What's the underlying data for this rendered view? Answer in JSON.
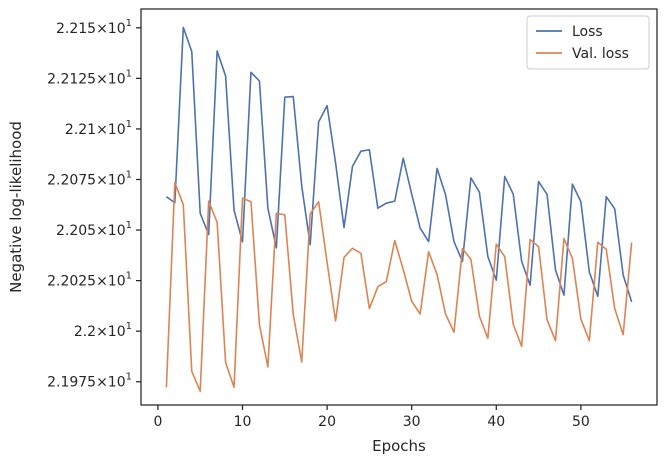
{
  "chart_data": {
    "type": "line",
    "title": "",
    "xlabel": "Epochs",
    "ylabel": "Negative log-likelihood",
    "xlim": [
      -2,
      59
    ],
    "ylim": [
      21.9635,
      22.1593
    ],
    "grid": false,
    "legend_position": "top-right",
    "x_ticks": [
      {
        "value": 0,
        "label": "0"
      },
      {
        "value": 10,
        "label": "10"
      },
      {
        "value": 20,
        "label": "20"
      },
      {
        "value": 30,
        "label": "30"
      },
      {
        "value": 40,
        "label": "40"
      },
      {
        "value": 50,
        "label": "50"
      }
    ],
    "y_ticks": [
      {
        "value": 21.975,
        "base": "2.1975",
        "exp": "1"
      },
      {
        "value": 22.0,
        "base": "2.2",
        "exp": "1"
      },
      {
        "value": 22.025,
        "base": "2.2025",
        "exp": "1"
      },
      {
        "value": 22.05,
        "base": "2.205",
        "exp": "1"
      },
      {
        "value": 22.075,
        "base": "2.2075",
        "exp": "1"
      },
      {
        "value": 22.1,
        "base": "2.21",
        "exp": "1"
      },
      {
        "value": 22.125,
        "base": "2.2125",
        "exp": "1"
      },
      {
        "value": 22.15,
        "base": "2.215",
        "exp": "1"
      }
    ],
    "x": [
      1,
      2,
      3,
      4,
      5,
      6,
      7,
      8,
      9,
      10,
      11,
      12,
      13,
      14,
      15,
      16,
      17,
      18,
      19,
      20,
      21,
      22,
      23,
      24,
      25,
      26,
      27,
      28,
      29,
      30,
      31,
      32,
      33,
      34,
      35,
      36,
      37,
      38,
      39,
      40,
      41,
      42,
      43,
      44,
      45,
      46,
      47,
      48,
      49,
      50,
      51,
      52,
      53,
      54,
      55,
      56
    ],
    "series": [
      {
        "name": "Loss",
        "color": "#4c72b0",
        "values": [
          22.0665,
          22.0635,
          22.1502,
          22.1383,
          22.0583,
          22.0478,
          22.1385,
          22.1262,
          22.0598,
          22.0442,
          22.128,
          22.1237,
          22.0608,
          22.0412,
          22.1157,
          22.116,
          22.0718,
          22.0428,
          22.1035,
          22.1115,
          22.0833,
          22.0512,
          22.0815,
          22.089,
          22.0897,
          22.0608,
          22.0633,
          22.0643,
          22.0855,
          22.0678,
          22.051,
          22.0443,
          22.0805,
          22.0675,
          22.0443,
          22.0345,
          22.0758,
          22.0688,
          22.037,
          22.0252,
          22.0765,
          22.0678,
          22.0345,
          22.0227,
          22.074,
          22.0677,
          22.0303,
          22.0178,
          22.0727,
          22.064,
          22.0293,
          22.0172,
          22.0665,
          22.0605,
          22.0278,
          22.0145
        ]
      },
      {
        "name": "Val. loss",
        "color": "#dd8452",
        "values": [
          21.9722,
          22.0735,
          22.0625,
          21.9802,
          21.9703,
          22.0643,
          22.0538,
          21.9845,
          21.9723,
          22.0658,
          22.064,
          22.0032,
          21.9823,
          22.0583,
          22.0575,
          22.0082,
          21.9848,
          22.058,
          22.064,
          22.034,
          22.005,
          22.0365,
          22.041,
          22.0385,
          22.0112,
          22.022,
          22.0245,
          22.0448,
          22.0305,
          22.0148,
          22.0085,
          22.0393,
          22.028,
          22.0085,
          21.9995,
          22.0408,
          22.0355,
          22.0075,
          21.9965,
          22.043,
          22.0368,
          22.0035,
          21.9925,
          22.0453,
          22.0418,
          22.0057,
          21.9953,
          22.0458,
          22.036,
          22.006,
          21.9953,
          22.044,
          22.0405,
          22.0112,
          21.9983,
          22.0438
        ]
      }
    ]
  }
}
